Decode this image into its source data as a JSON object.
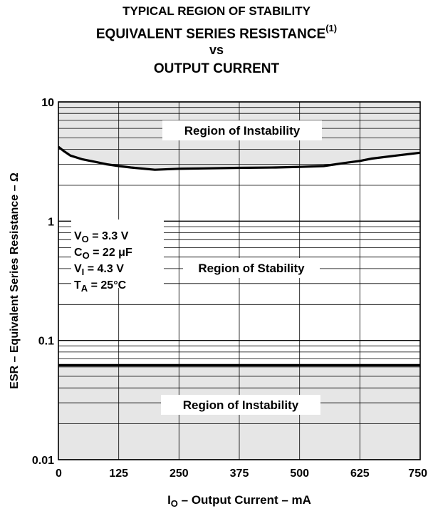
{
  "title": {
    "line1": "TYPICAL REGION OF STABILITY",
    "line2": "EQUIVALENT SERIES RESISTANCE",
    "line2_superscript": "(1)",
    "line3": "vs",
    "line4": "OUTPUT CURRENT"
  },
  "chart_data": {
    "type": "line",
    "y_scale": "log",
    "xlim": [
      0,
      750
    ],
    "ylim": [
      0.01,
      10
    ],
    "x_ticks": [
      "0",
      "125",
      "250",
      "375",
      "500",
      "625",
      "750"
    ],
    "y_ticks": [
      "0.01",
      "0.1",
      "1",
      "10"
    ],
    "xlabel": {
      "main": "I",
      "sub": "O",
      "rest": " – Output Current – mA"
    },
    "ylabel": "ESR – Equivalent Series Resistance – Ω",
    "grid": "log-minor horizontal, linear vertical",
    "series": [
      {
        "role": "upper stability boundary",
        "x": [
          0,
          10,
          25,
          50,
          75,
          100,
          125,
          150,
          200,
          250,
          300,
          375,
          450,
          500,
          550,
          575,
          600,
          625,
          650,
          700,
          750
        ],
        "y": [
          4.2,
          3.9,
          3.55,
          3.3,
          3.15,
          3.0,
          2.9,
          2.82,
          2.7,
          2.75,
          2.77,
          2.8,
          2.82,
          2.85,
          2.9,
          3.0,
          3.1,
          3.2,
          3.35,
          3.55,
          3.75
        ]
      },
      {
        "role": "lower stability boundary",
        "x": [
          0,
          750
        ],
        "y": [
          0.062,
          0.062
        ]
      }
    ],
    "regions": {
      "upper": "Region of Instability",
      "middle": "Region of Stability",
      "lower": "Region of Instability"
    },
    "conditions": [
      {
        "sym": "V",
        "sub": "O",
        "rest": " = 3.3 V"
      },
      {
        "sym": "C",
        "sub": "O",
        "rest": " = 22 μF"
      },
      {
        "sym": "V",
        "sub": "I",
        "rest": " = 4.3 V"
      },
      {
        "sym": "T",
        "sub": "A",
        "rest": " = 25°C"
      }
    ],
    "colors": {
      "instability_fill": "#e6e6e6",
      "stability_fill": "#ffffff",
      "lines": "#000000"
    }
  }
}
